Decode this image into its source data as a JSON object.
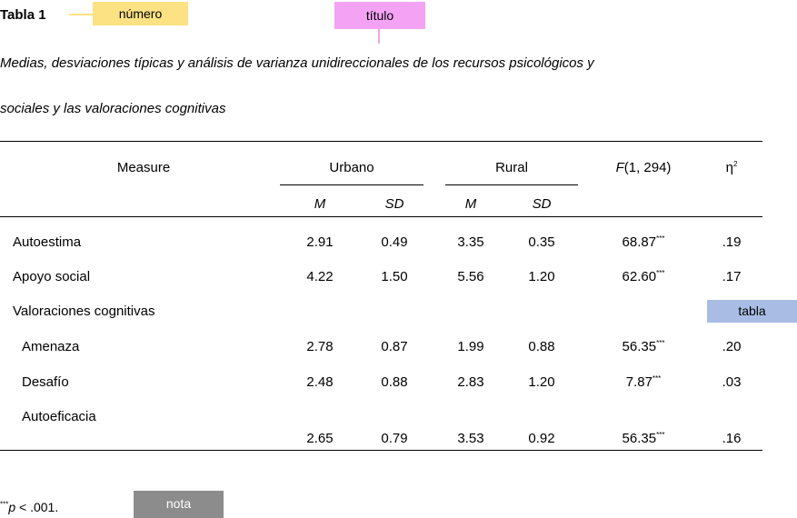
{
  "table_number": "Tabla 1",
  "callouts": {
    "numero": {
      "label": "número",
      "color": "#fde283"
    },
    "titulo": {
      "label": "título",
      "color": "#f4a3f4"
    },
    "tabla": {
      "label": "tabla",
      "color": "#a9bde4"
    },
    "nota": {
      "label": "nota",
      "color": "#8c8c8c"
    }
  },
  "title_lines": [
    "Medias, desviaciones típicas y análisis de varianza unidireccionales de los recursos psicológicos y",
    "sociales y las valoraciones cognitivas"
  ],
  "header": {
    "measure": "Measure",
    "urbano": "Urbano",
    "rural": "Rural",
    "f_italic": "F",
    "f_rest": "(1, 294)",
    "eta": "η",
    "eta_sup": "2",
    "m": "M",
    "sd": "SD"
  },
  "rows": [
    {
      "measure": "Autoestima",
      "um": "2.91",
      "usd": "0.49",
      "rm": "3.35",
      "rsd": "0.35",
      "f": "68.87",
      "sig": "***",
      "eta": ".19"
    },
    {
      "measure": "Apoyo social",
      "um": "4.22",
      "usd": "1.50",
      "rm": "5.56",
      "rsd": "1.20",
      "f": "62.60",
      "sig": "***",
      "eta": ".17"
    },
    {
      "measure": "Valoraciones cognitivas"
    },
    {
      "measure": "Amenaza",
      "um": "2.78",
      "usd": "0.87",
      "rm": "1.99",
      "rsd": "0.88",
      "f": "56.35",
      "sig": "***",
      "eta": ".20"
    },
    {
      "measure": "Desafío",
      "um": "2.48",
      "usd": "0.88",
      "rm": "2.83",
      "rsd": "1.20",
      "f": "7.87",
      "sig": "***",
      "eta": ".03"
    },
    {
      "measure": "Autoeficacia"
    },
    {
      "um": "2.65",
      "usd": "0.79",
      "rm": "3.53",
      "rsd": "0.92",
      "f": "56.35",
      "sig": "***",
      "eta": ".16"
    }
  ],
  "footnote": {
    "sig": "***",
    "p": "p",
    "rest": " < .001."
  }
}
